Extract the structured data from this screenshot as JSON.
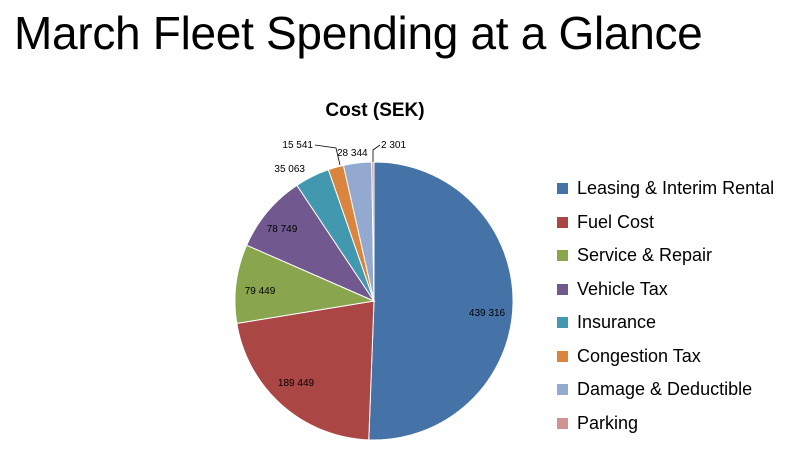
{
  "slide": {
    "title": "March Fleet Spending at a Glance"
  },
  "chart_data": {
    "type": "pie",
    "title": "Cost (SEK)",
    "legend_position": "right",
    "categories": [
      "Leasing & Interim Rental",
      "Fuel Cost",
      "Service & Repair",
      "Vehicle Tax",
      "Insurance",
      "Congestion Tax",
      "Damage & Deductible",
      "Parking"
    ],
    "values": [
      439316,
      189449,
      79449,
      78749,
      35063,
      15541,
      28344,
      2301
    ],
    "labels": [
      "439 316",
      "189 449",
      "79 449",
      "78 749",
      "35 063",
      "15 541",
      "28 344",
      "2 301"
    ],
    "colors": [
      "#4572A7",
      "#AA4643",
      "#89A54E",
      "#71588F",
      "#4198AF",
      "#DB843D",
      "#93A9CF",
      "#D19392"
    ]
  }
}
